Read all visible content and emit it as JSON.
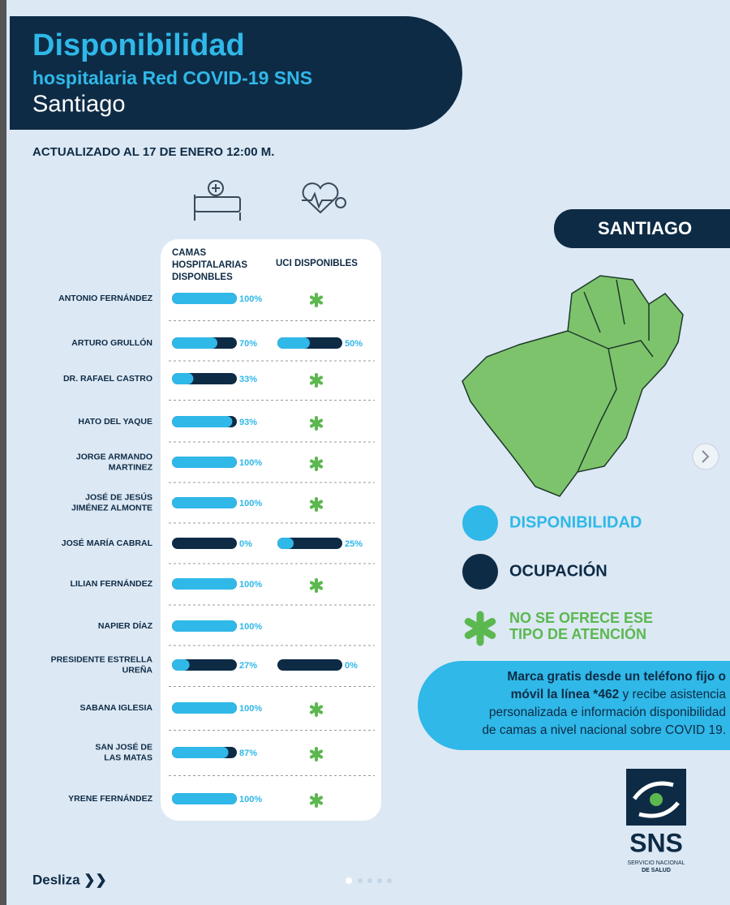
{
  "header": {
    "title": "Disponibilidad",
    "subtitle": "hospitalaria Red COVID-19 SNS",
    "region": "Santiago"
  },
  "updated": "ACTUALIZADO AL 17 DE ENERO 12:00 M.",
  "columns": {
    "beds": [
      "CAMAS",
      "HOSPITALARIAS",
      "DISPONBLES"
    ],
    "uci": "UCI DISPONIBLES"
  },
  "hospitals": [
    {
      "name": [
        "ANTONIO FERNÁNDEZ"
      ],
      "beds": 100,
      "beds_label": "100%",
      "uci": null,
      "uci_not_offered": true
    },
    {
      "name": [
        "ARTURO GRULLÓN"
      ],
      "beds": 70,
      "beds_label": "70%",
      "uci": 50,
      "uci_label": "50%"
    },
    {
      "name": [
        "DR. RAFAEL CASTRO"
      ],
      "beds": 33,
      "beds_label": "33%",
      "uci": null,
      "uci_not_offered": true
    },
    {
      "name": [
        "HATO DEL YAQUE"
      ],
      "beds": 93,
      "beds_label": "93%",
      "uci": null,
      "uci_not_offered": true
    },
    {
      "name": [
        "JORGE ARMANDO",
        "MARTINEZ"
      ],
      "beds": 100,
      "beds_label": "100%",
      "uci": null,
      "uci_not_offered": true
    },
    {
      "name": [
        "JOSÉ DE JESÚS",
        "JIMÉNEZ ALMONTE"
      ],
      "beds": 100,
      "beds_label": "100%",
      "uci": null,
      "uci_not_offered": true
    },
    {
      "name": [
        "JOSÉ MARÍA CABRAL"
      ],
      "beds": 0,
      "beds_label": "0%",
      "uci": 25,
      "uci_label": "25%"
    },
    {
      "name": [
        "LILIAN FERNÁNDEZ"
      ],
      "beds": 100,
      "beds_label": "100%",
      "uci": null,
      "uci_not_offered": true
    },
    {
      "name": [
        "NAPIER DÍAZ"
      ],
      "beds": 100,
      "beds_label": "100%",
      "uci": null
    },
    {
      "name": [
        "PRESIDENTE ESTRELLA",
        "UREÑA"
      ],
      "beds": 27,
      "beds_label": "27%",
      "uci": 0,
      "uci_label": "0%"
    },
    {
      "name": [
        "SABANA IGLESIA"
      ],
      "beds": 100,
      "beds_label": "100%",
      "uci": null,
      "uci_not_offered": true
    },
    {
      "name": [
        "SAN JOSÉ DE",
        "LAS MATAS"
      ],
      "beds": 87,
      "beds_label": "87%",
      "uci": null,
      "uci_not_offered": true
    },
    {
      "name": [
        "YRENE FERNÁNDEZ"
      ],
      "beds": 100,
      "beds_label": "100%",
      "uci": null,
      "uci_not_offered": true
    }
  ],
  "map_title": "SANTIAGO",
  "legend": {
    "available": "DISPONIBILIDAD",
    "occupied": "OCUPACIÓN",
    "not_offered": [
      "NO SE OFRECE ESE",
      "TIPO DE ATENCIÓN"
    ]
  },
  "info": [
    [
      {
        "text": "Marca gratis desde un teléfono fijo o",
        "bold": true
      }
    ],
    [
      {
        "text": "móvil la línea *462",
        "bold": true
      },
      {
        "text": " y recibe asistencia",
        "bold": false
      }
    ],
    [
      {
        "text": "personalizada e información disponibilidad",
        "bold": false
      }
    ],
    [
      {
        "text": "de camas a nivel nacional sobre COVID 19.",
        "bold": false
      }
    ]
  ],
  "logo": {
    "name": "SNS",
    "line1": "SERVICIO NACIONAL",
    "line2": "DE SALUD"
  },
  "footer": "Desliza ❯❯"
}
